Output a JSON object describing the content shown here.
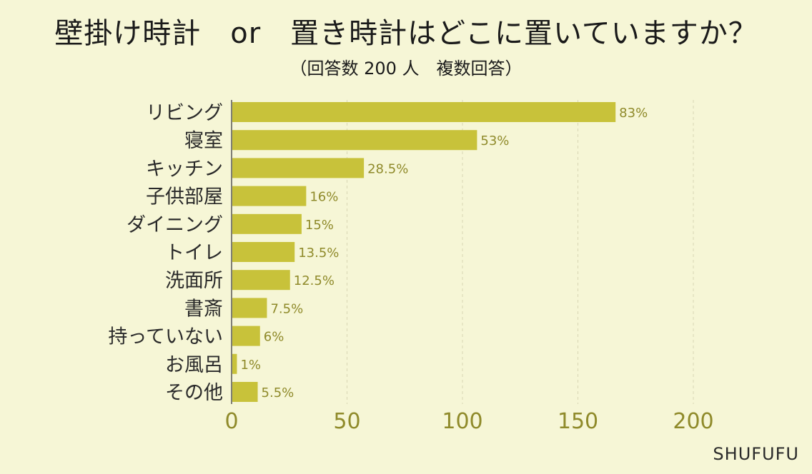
{
  "title": "壁掛け時計　or　置き時計はどこに置いていますか？",
  "subtitle": "（回答数 200 人　複数回答）",
  "brand": "SHUFUFU",
  "colors": {
    "background": "#f6f6d6",
    "bar": "#c8c23a",
    "axis_text": "#8f8a2a",
    "category_text": "#2a2a2a",
    "grid": "#d8d6b4"
  },
  "chart_data": {
    "type": "bar",
    "orientation": "horizontal",
    "categories": [
      "リビング",
      "寝室",
      "キッチン",
      "子供部屋",
      "ダイニング",
      "トイレ",
      "洗面所",
      "書斎",
      "持っていない",
      "お風呂",
      "その他"
    ],
    "values": [
      166,
      106,
      57,
      32,
      30,
      27,
      25,
      15,
      12,
      2,
      11
    ],
    "data_labels": [
      "83%",
      "53%",
      "28.5%",
      "16%",
      "15%",
      "13.5%",
      "12.5%",
      "7.5%",
      "6%",
      "1%",
      "5.5%"
    ],
    "xlim": [
      0,
      200
    ],
    "xticks": [
      0,
      50,
      100,
      150,
      200
    ],
    "grid": "vertical dashed",
    "legend": "none"
  }
}
